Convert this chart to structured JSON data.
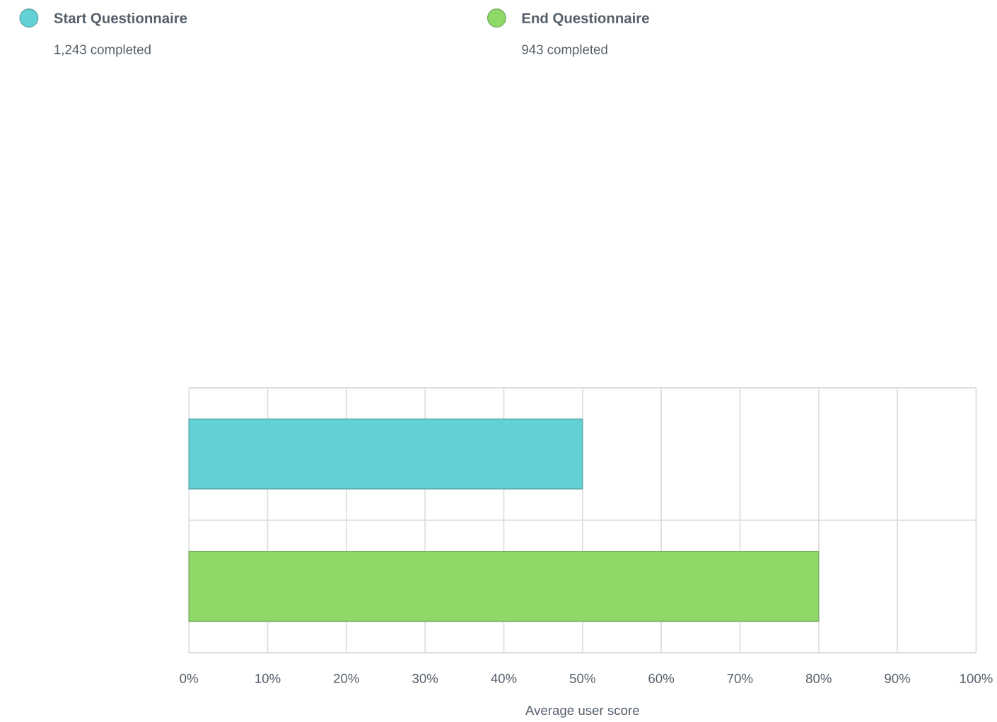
{
  "chart_data": {
    "type": "bar",
    "orientation": "horizontal",
    "xlabel": "Average user score",
    "categories": [
      null,
      null
    ],
    "series": [
      {
        "name": "Start Questionnaire",
        "color": "#62d1d6",
        "values": [
          50,
          null
        ]
      },
      {
        "name": "End Questionnaire",
        "color": "#8fd968",
        "values": [
          null,
          80
        ]
      }
    ],
    "annotations": [
      "1,243 completed",
      "943 completed"
    ],
    "xlim": [
      0,
      100
    ],
    "xticks": [
      {
        "value": 0,
        "label": "0%"
      },
      {
        "value": 10,
        "label": "10%"
      },
      {
        "value": 20,
        "label": "20%"
      },
      {
        "value": 30,
        "label": "30%"
      },
      {
        "value": 40,
        "label": "40%"
      },
      {
        "value": 50,
        "label": "50%"
      },
      {
        "value": 60,
        "label": "60%"
      },
      {
        "value": 70,
        "label": "70%"
      },
      {
        "value": 80,
        "label": "80%"
      },
      {
        "value": 90,
        "label": "90%"
      },
      {
        "value": 100,
        "label": "100%"
      }
    ],
    "grid": true,
    "legend": "top"
  }
}
